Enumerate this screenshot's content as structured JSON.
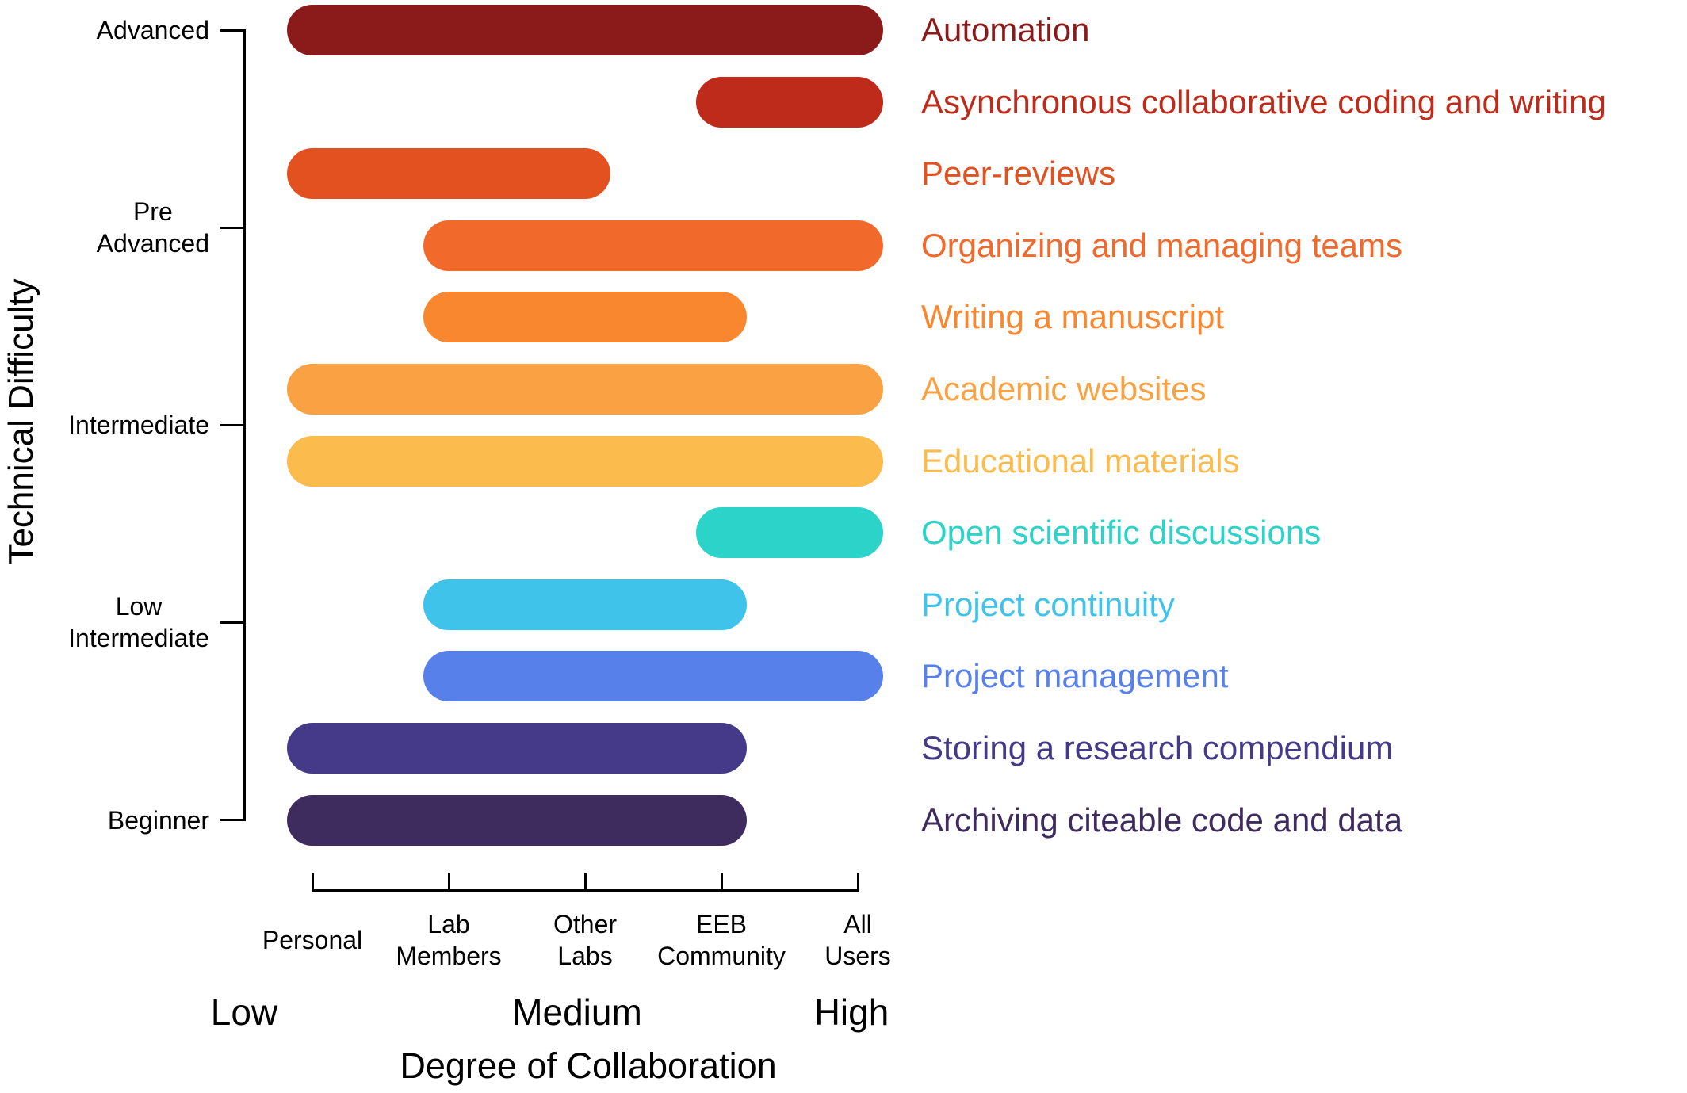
{
  "chart_data": {
    "type": "bar",
    "variant": "horizontal-range-stadium-bars",
    "title": "",
    "xlabel": "Degree of Collaboration",
    "ylabel": "Technical Difficulty",
    "grid": false,
    "background": "#FFFFFF",
    "axis_color": "#000000",
    "legend_position": "right-inline-colored-labels",
    "x_axis": {
      "categories": [
        "Personal",
        "Lab Members",
        "Other Labs",
        "EEB Community",
        "All Users"
      ],
      "category_lines": [
        [
          "Personal"
        ],
        [
          "Lab",
          "Members"
        ],
        [
          "Other",
          "Labs"
        ],
        [
          "EEB",
          "Community"
        ],
        [
          "All",
          "Users"
        ]
      ],
      "scale_labels": [
        "Low",
        "Medium",
        "High"
      ]
    },
    "y_axis": {
      "categories": [
        "Advanced",
        "Pre Advanced",
        "Intermediate",
        "Low Intermediate",
        "Beginner"
      ],
      "category_lines": [
        [
          "Advanced"
        ],
        [
          "Pre",
          "Advanced"
        ],
        [
          "Intermediate"
        ],
        [
          "Low",
          "Intermediate"
        ],
        [
          "Beginner"
        ]
      ]
    },
    "bars": [
      {
        "label": "Automation",
        "color": "#8A1B1A",
        "from": "Personal",
        "to": "All Users"
      },
      {
        "label": "Asynchronous collaborative coding and writing",
        "color": "#BE2B1A",
        "from": "EEB Community",
        "to": "All Users"
      },
      {
        "label": "Peer-reviews",
        "color": "#E2511F",
        "from": "Personal",
        "to": "Other Labs"
      },
      {
        "label": "Organizing and managing teams",
        "color": "#F16A2C",
        "from": "Lab Members",
        "to": "All Users"
      },
      {
        "label": "Writing a manuscript",
        "color": "#F8872F",
        "from": "Lab Members",
        "to": "EEB Community"
      },
      {
        "label": "Academic websites",
        "color": "#FAA243",
        "from": "Personal",
        "to": "All Users"
      },
      {
        "label": "Educational materials",
        "color": "#FBBB4D",
        "from": "Personal",
        "to": "All Users"
      },
      {
        "label": "Open scientific discussions",
        "color": "#2CD3C9",
        "from": "EEB Community",
        "to": "All Users"
      },
      {
        "label": "Project continuity",
        "color": "#3FC3EB",
        "from": "Lab Members",
        "to": "EEB Community"
      },
      {
        "label": "Project management",
        "color": "#5780EA",
        "from": "Lab Members",
        "to": "All Users"
      },
      {
        "label": "Storing a research compendium",
        "color": "#453A89",
        "from": "Personal",
        "to": "EEB Community"
      },
      {
        "label": "Archiving citeable code and data",
        "color": "#3F2C5E",
        "from": "Personal",
        "to": "EEB Community"
      }
    ]
  }
}
